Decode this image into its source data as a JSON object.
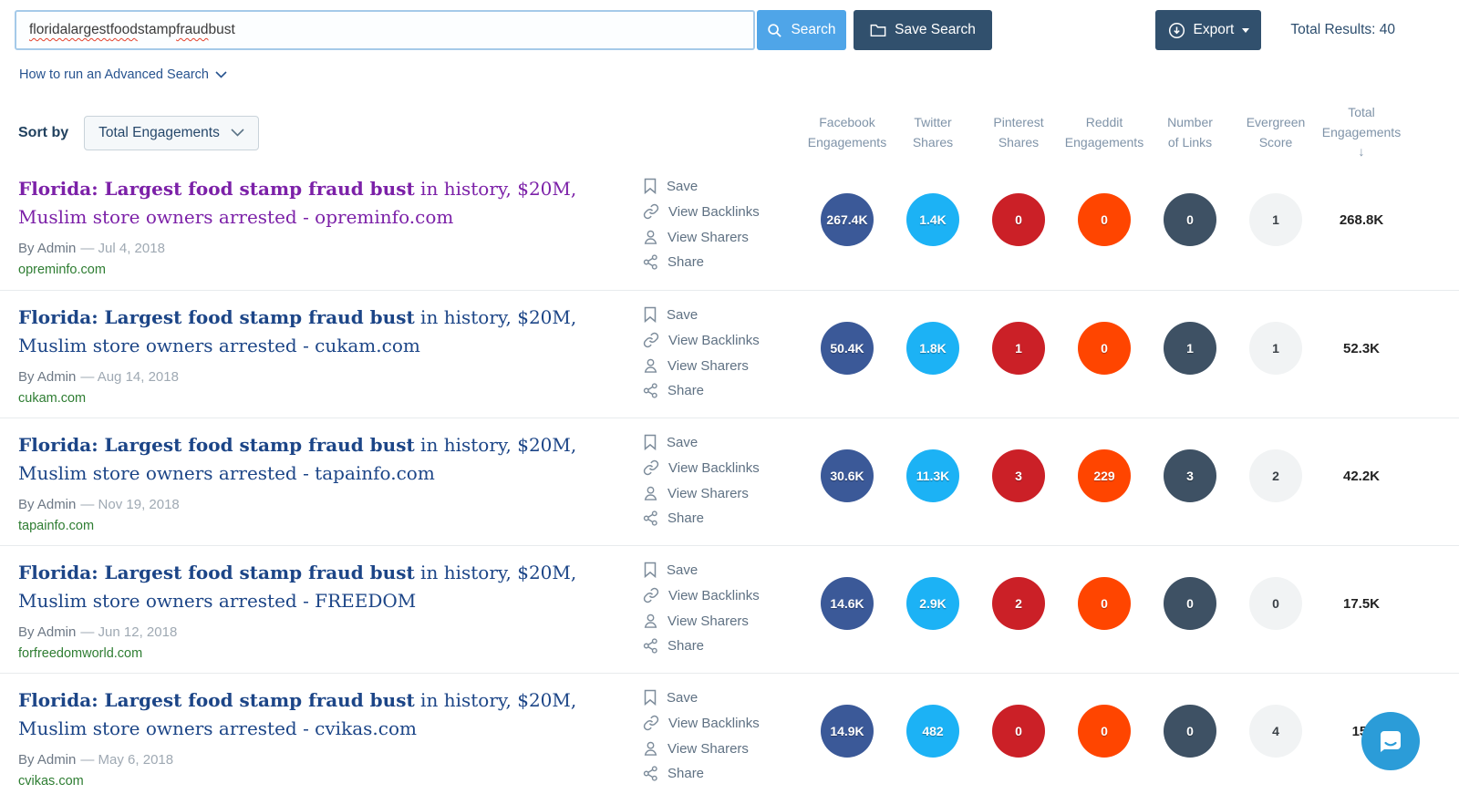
{
  "topbar": {
    "query_words": [
      {
        "text": "florida",
        "misspelled": true
      },
      {
        "text": "largest",
        "misspelled": true
      },
      {
        "text": "food",
        "misspelled": true
      },
      {
        "text": "stamp",
        "misspelled": false
      },
      {
        "text": "fraud",
        "misspelled": true
      },
      {
        "text": "bust",
        "misspelled": false
      }
    ],
    "search_button": "Search",
    "save_search_button": "Save Search",
    "export_button": "Export",
    "total_results": "Total Results: 40",
    "advanced_search_link": "How to run an Advanced Search"
  },
  "sort": {
    "label": "Sort by",
    "selected": "Total Engagements"
  },
  "sort_arrow": "↓",
  "columns": [
    {
      "line1": "Facebook",
      "line2": "Engagements"
    },
    {
      "line1": "Twitter",
      "line2": "Shares"
    },
    {
      "line1": "Pinterest",
      "line2": "Shares"
    },
    {
      "line1": "Reddit",
      "line2": "Engagements"
    },
    {
      "line1": "Number",
      "line2": "of Links"
    },
    {
      "line1": "Evergreen",
      "line2": "Score"
    },
    {
      "line1": "Total",
      "line2": "Engagements"
    }
  ],
  "actions": [
    "Save",
    "View Backlinks",
    "View Sharers",
    "Share"
  ],
  "results": [
    {
      "title_bold": "Florida: Largest food stamp fraud bust",
      "title_rest": " in history, $20M, Muslim store owners arrested - opreminfo.com",
      "visited": true,
      "byline_by": "By Admin",
      "byline_date": "— Jul 4, 2018",
      "domain": "opreminfo.com",
      "metrics": {
        "facebook": "267.4K",
        "twitter": "1.4K",
        "pinterest": "0",
        "reddit": "0",
        "links": "0",
        "evergreen": "1",
        "total": "268.8K"
      }
    },
    {
      "title_bold": "Florida: Largest food stamp fraud bust",
      "title_rest": " in history, $20M, Muslim store owners arrested - cukam.com",
      "visited": false,
      "byline_by": "By Admin",
      "byline_date": "— Aug 14, 2018",
      "domain": "cukam.com",
      "metrics": {
        "facebook": "50.4K",
        "twitter": "1.8K",
        "pinterest": "1",
        "reddit": "0",
        "links": "1",
        "evergreen": "1",
        "total": "52.3K"
      }
    },
    {
      "title_bold": "Florida: Largest food stamp fraud bust",
      "title_rest": " in history, $20M, Muslim store owners arrested - tapainfo.com",
      "visited": false,
      "byline_by": "By Admin",
      "byline_date": "— Nov 19, 2018",
      "domain": "tapainfo.com",
      "metrics": {
        "facebook": "30.6K",
        "twitter": "11.3K",
        "pinterest": "3",
        "reddit": "229",
        "links": "3",
        "evergreen": "2",
        "total": "42.2K"
      }
    },
    {
      "title_bold": "Florida: Largest food stamp fraud bust",
      "title_rest": " in history, $20M, Muslim store owners arrested - FREEDOM",
      "visited": false,
      "byline_by": "By Admin",
      "byline_date": "— Jun 12, 2018",
      "domain": "forfreedomworld.com",
      "metrics": {
        "facebook": "14.6K",
        "twitter": "2.9K",
        "pinterest": "2",
        "reddit": "0",
        "links": "0",
        "evergreen": "0",
        "total": "17.5K"
      }
    },
    {
      "title_bold": "Florida: Largest food stamp fraud bust",
      "title_rest": " in history, $20M, Muslim store owners arrested - cvikas.com",
      "visited": false,
      "byline_by": "By Admin",
      "byline_date": "— May 6, 2018",
      "domain": "cvikas.com",
      "metrics": {
        "facebook": "14.9K",
        "twitter": "482",
        "pinterest": "0",
        "reddit": "0",
        "links": "0",
        "evergreen": "4",
        "total": "15."
      }
    }
  ],
  "colors": {
    "facebook": "#3b5998",
    "twitter": "#1cb2f5",
    "pinterest": "#cb2027",
    "reddit": "#ff4500",
    "links": "#3e5164",
    "evergreen": "#f1f3f4",
    "search_button": "#4fa5e8",
    "dark_button": "#31506d",
    "visited_title": "#7c21a8",
    "title_blue": "#1c4587",
    "domain_green": "#2e7d32"
  }
}
